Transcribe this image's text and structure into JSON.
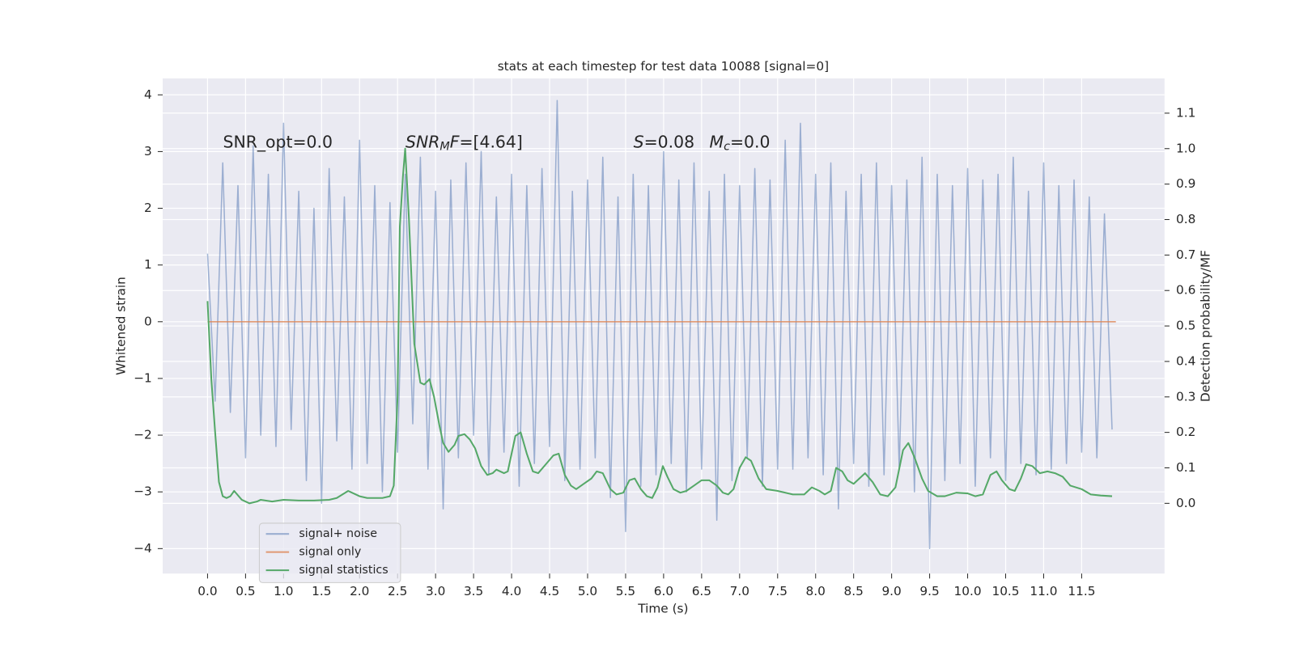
{
  "chart_data": {
    "type": "line",
    "title": "stats at each timestep for test data 10088 [signal=0]",
    "xlabel": "Time (s)",
    "ylabel": "Whitened strain",
    "y2label": "Detection probability/MF",
    "grid": true,
    "background": "#eaeaf2",
    "legend": "lower left",
    "annotations": [
      {
        "parts": [
          {
            "text": "SNR_opt=0.0"
          }
        ]
      },
      {
        "parts": [
          {
            "text": "SNR",
            "italic": true
          },
          {
            "text": "M",
            "italic": true,
            "sub": true
          },
          {
            "text": "F",
            "italic": true
          },
          {
            "text": "=[4.64]"
          }
        ]
      },
      {
        "parts": [
          {
            "text": "S",
            "italic": true
          },
          {
            "text": "=0.08"
          }
        ]
      },
      {
        "parts": [
          {
            "text": "M",
            "italic": true
          },
          {
            "text": "c",
            "italic": true,
            "sub": true
          },
          {
            "text": "=0.0"
          }
        ]
      }
    ],
    "xlim": [
      -0.59,
      12.59
    ],
    "ylim": [
      -4.44,
      4.29
    ],
    "y2lim": [
      -0.198,
      1.198
    ],
    "xticks": [
      {
        "value": 0,
        "label": "0.0"
      },
      0.5,
      {
        "value": 1,
        "label": "1.0"
      },
      1.5,
      {
        "value": 2,
        "label": "2.0"
      },
      2.5,
      {
        "value": 3,
        "label": "3.0"
      },
      3.5,
      {
        "value": 4,
        "label": "4.0"
      },
      4.5,
      {
        "value": 5,
        "label": "5.0"
      },
      5.5,
      {
        "value": 6,
        "label": "6.0"
      },
      6.5,
      {
        "value": 7,
        "label": "7.0"
      },
      7.5,
      {
        "value": 8,
        "label": "8.0"
      },
      8.5,
      {
        "value": 9,
        "label": "9.0"
      },
      9.5,
      {
        "value": 10,
        "label": "10.0"
      },
      10.5,
      {
        "value": 11,
        "label": "11.0"
      },
      11.5
    ],
    "yticks": [
      {
        "value": -4,
        "label": "−4"
      },
      {
        "value": -3,
        "label": "−3"
      },
      {
        "value": -2,
        "label": "−2"
      },
      {
        "value": -1,
        "label": "−1"
      },
      0,
      1,
      2,
      3,
      4
    ],
    "y2ticks": [
      {
        "value": 0,
        "label": "0.0"
      },
      0.1,
      0.2,
      0.3,
      0.4,
      0.5,
      0.6,
      0.7,
      0.8,
      0.9,
      {
        "value": 1,
        "label": "1.0"
      },
      1.1
    ],
    "series": [
      {
        "name": "signal+ noise",
        "color": "#4c72b0",
        "opacity": 0.5,
        "x": [
          0.0,
          0.1,
          0.2,
          0.3,
          0.4,
          0.5,
          0.6,
          0.7,
          0.8,
          0.9,
          1.0,
          1.1,
          1.2,
          1.3,
          1.4,
          1.5,
          1.6,
          1.7,
          1.8,
          1.9,
          2.0,
          2.1,
          2.2,
          2.3,
          2.4,
          2.5,
          2.6,
          2.7,
          2.8,
          2.9,
          3.0,
          3.1,
          3.2,
          3.3,
          3.4,
          3.5,
          3.6,
          3.7,
          3.8,
          3.9,
          4.0,
          4.1,
          4.2,
          4.3,
          4.4,
          4.5,
          4.6,
          4.7,
          4.8,
          4.9,
          5.0,
          5.1,
          5.2,
          5.3,
          5.4,
          5.5,
          5.6,
          5.7,
          5.8,
          5.9,
          6.0,
          6.1,
          6.2,
          6.3,
          6.4,
          6.5,
          6.6,
          6.7,
          6.8,
          6.9,
          7.0,
          7.1,
          7.2,
          7.3,
          7.4,
          7.5,
          7.6,
          7.7,
          7.8,
          7.9,
          8.0,
          8.1,
          8.2,
          8.3,
          8.4,
          8.5,
          8.6,
          8.7,
          8.8,
          8.9,
          9.0,
          9.1,
          9.2,
          9.3,
          9.4,
          9.5,
          9.6,
          9.7,
          9.8,
          9.9,
          10.0,
          10.1,
          10.2,
          10.3,
          10.4,
          10.5,
          10.6,
          10.7,
          10.8,
          10.9,
          11.0,
          11.1,
          11.2,
          11.3,
          11.4,
          11.5,
          11.6,
          11.7,
          11.8,
          11.9
        ],
        "values": [
          1.2,
          -1.4,
          2.8,
          -1.6,
          2.4,
          -2.4,
          3.1,
          -2.0,
          2.6,
          -2.2,
          3.5,
          -1.9,
          2.3,
          -2.8,
          2.0,
          -3.2,
          2.7,
          -2.1,
          2.2,
          -2.6,
          3.2,
          -2.5,
          2.4,
          -3.0,
          2.1,
          -2.3,
          2.6,
          -1.8,
          2.9,
          -2.6,
          2.3,
          -3.3,
          2.5,
          -2.4,
          2.8,
          -2.0,
          3.0,
          -2.7,
          2.2,
          -2.3,
          2.6,
          -2.9,
          2.4,
          -2.5,
          2.7,
          -2.2,
          3.9,
          -2.8,
          2.3,
          -2.6,
          2.5,
          -2.4,
          2.9,
          -3.1,
          2.2,
          -3.7,
          2.6,
          -2.9,
          2.4,
          -2.7,
          3.0,
          -2.5,
          2.5,
          -3.0,
          2.8,
          -2.6,
          2.3,
          -3.5,
          2.6,
          -2.8,
          2.4,
          -2.4,
          2.7,
          -2.9,
          2.5,
          -2.6,
          3.2,
          -2.6,
          3.5,
          -2.4,
          2.6,
          -2.7,
          2.8,
          -3.3,
          2.3,
          -2.5,
          2.6,
          -2.9,
          2.8,
          -2.7,
          2.4,
          -2.6,
          2.5,
          -3.0,
          2.9,
          -4.0,
          2.6,
          -2.8,
          2.4,
          -2.5,
          2.7,
          -2.9,
          2.5,
          -2.4,
          2.6,
          -2.8,
          2.9,
          -2.5,
          2.3,
          -2.7,
          2.8,
          -2.6,
          2.4,
          -2.5,
          2.5,
          -2.3,
          2.2,
          -2.4,
          1.9,
          -1.9
        ]
      },
      {
        "name": "signal only",
        "color": "#dd8452",
        "opacity": 0.8,
        "x": [
          0.0,
          11.95
        ],
        "values": [
          0,
          0
        ]
      },
      {
        "name": "signal statistics",
        "color": "#55a868",
        "opacity": 1,
        "axis": "y2",
        "x": [
          0.0,
          0.05,
          0.1,
          0.15,
          0.2,
          0.25,
          0.3,
          0.35,
          0.45,
          0.55,
          0.65,
          0.7,
          0.85,
          1.0,
          1.2,
          1.4,
          1.6,
          1.7,
          1.85,
          1.9,
          2.0,
          2.1,
          2.3,
          2.4,
          2.45,
          2.5,
          2.53,
          2.57,
          2.6,
          2.65,
          2.72,
          2.8,
          2.85,
          2.92,
          2.98,
          3.05,
          3.1,
          3.17,
          3.25,
          3.3,
          3.38,
          3.45,
          3.52,
          3.6,
          3.68,
          3.75,
          3.8,
          3.9,
          3.95,
          4.05,
          4.12,
          4.2,
          4.28,
          4.35,
          4.45,
          4.55,
          4.62,
          4.7,
          4.78,
          4.85,
          4.95,
          5.05,
          5.12,
          5.2,
          5.3,
          5.38,
          5.47,
          5.55,
          5.62,
          5.7,
          5.78,
          5.85,
          5.92,
          5.99,
          6.05,
          6.13,
          6.22,
          6.3,
          6.4,
          6.5,
          6.6,
          6.7,
          6.78,
          6.85,
          6.92,
          7.0,
          7.08,
          7.15,
          7.25,
          7.35,
          7.5,
          7.7,
          7.85,
          7.95,
          8.05,
          8.12,
          8.2,
          8.27,
          8.35,
          8.42,
          8.5,
          8.6,
          8.65,
          8.75,
          8.85,
          8.95,
          9.05,
          9.15,
          9.22,
          9.3,
          9.4,
          9.48,
          9.6,
          9.7,
          9.85,
          10.0,
          10.1,
          10.2,
          10.3,
          10.38,
          10.45,
          10.55,
          10.62,
          10.7,
          10.77,
          10.85,
          10.95,
          11.05,
          11.15,
          11.25,
          11.35,
          11.5,
          11.62,
          11.75,
          11.9
        ],
        "values": [
          0.57,
          0.35,
          0.2,
          0.06,
          0.02,
          0.015,
          0.02,
          0.035,
          0.01,
          0.0,
          0.005,
          0.01,
          0.005,
          0.01,
          0.008,
          0.008,
          0.01,
          0.015,
          0.035,
          0.03,
          0.02,
          0.015,
          0.015,
          0.02,
          0.05,
          0.3,
          0.78,
          0.92,
          1.0,
          0.8,
          0.45,
          0.34,
          0.335,
          0.35,
          0.3,
          0.22,
          0.17,
          0.145,
          0.165,
          0.19,
          0.195,
          0.18,
          0.155,
          0.105,
          0.08,
          0.085,
          0.095,
          0.085,
          0.09,
          0.19,
          0.2,
          0.14,
          0.09,
          0.085,
          0.11,
          0.135,
          0.14,
          0.08,
          0.05,
          0.04,
          0.055,
          0.07,
          0.09,
          0.085,
          0.04,
          0.025,
          0.03,
          0.065,
          0.07,
          0.04,
          0.02,
          0.015,
          0.045,
          0.105,
          0.075,
          0.04,
          0.03,
          0.035,
          0.05,
          0.065,
          0.065,
          0.05,
          0.03,
          0.025,
          0.04,
          0.1,
          0.13,
          0.12,
          0.07,
          0.04,
          0.035,
          0.025,
          0.025,
          0.045,
          0.035,
          0.025,
          0.035,
          0.1,
          0.09,
          0.065,
          0.055,
          0.075,
          0.085,
          0.06,
          0.025,
          0.02,
          0.045,
          0.15,
          0.17,
          0.13,
          0.07,
          0.035,
          0.02,
          0.02,
          0.03,
          0.028,
          0.02,
          0.025,
          0.08,
          0.09,
          0.065,
          0.04,
          0.035,
          0.07,
          0.11,
          0.105,
          0.085,
          0.09,
          0.085,
          0.075,
          0.05,
          0.04,
          0.025,
          0.022,
          0.02
        ]
      }
    ]
  }
}
